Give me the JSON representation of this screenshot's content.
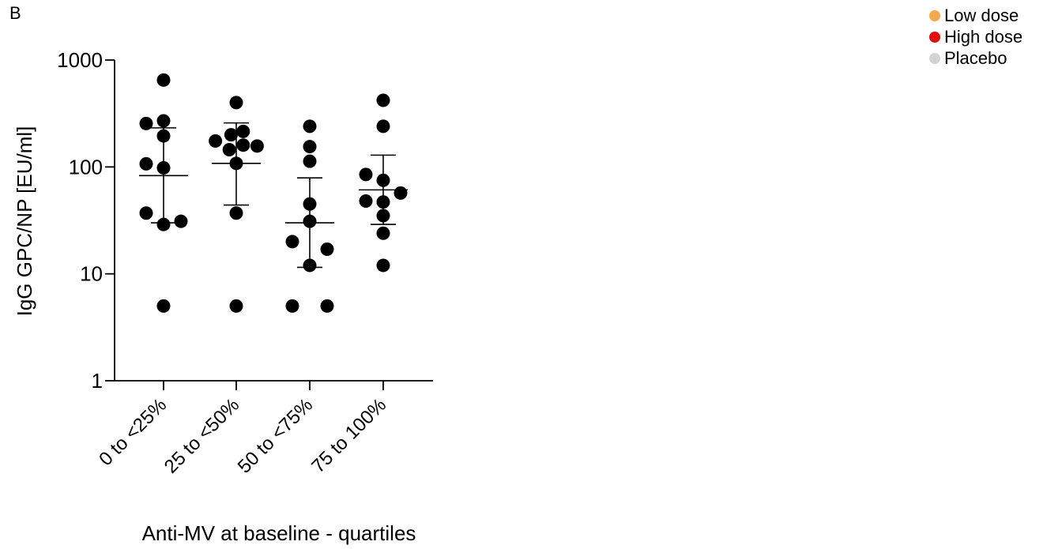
{
  "panel_label": "B",
  "legend": [
    {
      "label": "Low dose",
      "color": "#f5a850"
    },
    {
      "label": "High dose",
      "color": "#e00d0d"
    },
    {
      "label": "Placebo",
      "color": "#d3d3d3"
    }
  ],
  "chart_data": {
    "type": "scatter",
    "title": "",
    "xlabel": "Anti-MV at baseline - quartiles",
    "ylabel": "IgG GPC/NP [EU/ml]",
    "yscale": "log",
    "ylim": [
      1,
      1000
    ],
    "yticks": [
      1,
      10,
      100,
      1000
    ],
    "ytick_labels": [
      "1",
      "10",
      "100",
      "1000"
    ],
    "grid": false,
    "point_color": "#000000",
    "categories": [
      "0 to <25%",
      "25 to <50%",
      "50 to <75%",
      "75 to 100%"
    ],
    "groups": [
      {
        "category": "0 to <25%",
        "points": [
          {
            "y": 650,
            "offset": 0
          },
          {
            "y": 255,
            "offset": -1
          },
          {
            "y": 270,
            "offset": 0
          },
          {
            "y": 195,
            "offset": 0
          },
          {
            "y": 107,
            "offset": -1
          },
          {
            "y": 98,
            "offset": 0
          },
          {
            "y": 37,
            "offset": -1
          },
          {
            "y": 29,
            "offset": 0
          },
          {
            "y": 31,
            "offset": 1
          },
          {
            "y": 5,
            "offset": 0
          }
        ],
        "median": 83,
        "q1": 30,
        "q3": 232
      },
      {
        "category": "25 to <50%",
        "points": [
          {
            "y": 400,
            "offset": 0
          },
          {
            "y": 175,
            "offset": -1.2
          },
          {
            "y": 200,
            "offset": -0.3
          },
          {
            "y": 215,
            "offset": 0.4
          },
          {
            "y": 145,
            "offset": -0.4
          },
          {
            "y": 160,
            "offset": 0.4
          },
          {
            "y": 157,
            "offset": 1.2
          },
          {
            "y": 108,
            "offset": 0
          },
          {
            "y": 37,
            "offset": 0
          },
          {
            "y": 5,
            "offset": 0
          }
        ],
        "median": 108,
        "q1": 44,
        "q3": 258
      },
      {
        "category": "50 to <75%",
        "points": [
          {
            "y": 240,
            "offset": 0
          },
          {
            "y": 155,
            "offset": 0
          },
          {
            "y": 113,
            "offset": 0
          },
          {
            "y": 45,
            "offset": 0
          },
          {
            "y": 31,
            "offset": 0
          },
          {
            "y": 20,
            "offset": -1
          },
          {
            "y": 17,
            "offset": 1
          },
          {
            "y": 12,
            "offset": 0
          },
          {
            "y": 5,
            "offset": -1
          },
          {
            "y": 5,
            "offset": 1
          }
        ],
        "median": 30,
        "q1": 11.5,
        "q3": 79
      },
      {
        "category": "75 to 100%",
        "points": [
          {
            "y": 420,
            "offset": 0
          },
          {
            "y": 240,
            "offset": 0
          },
          {
            "y": 85,
            "offset": -1
          },
          {
            "y": 75,
            "offset": 0
          },
          {
            "y": 57,
            "offset": 1
          },
          {
            "y": 48,
            "offset": -1
          },
          {
            "y": 47,
            "offset": 0
          },
          {
            "y": 35,
            "offset": 0
          },
          {
            "y": 24,
            "offset": 0
          },
          {
            "y": 12,
            "offset": 0
          }
        ],
        "median": 61,
        "q1": 29,
        "q3": 129
      }
    ]
  }
}
